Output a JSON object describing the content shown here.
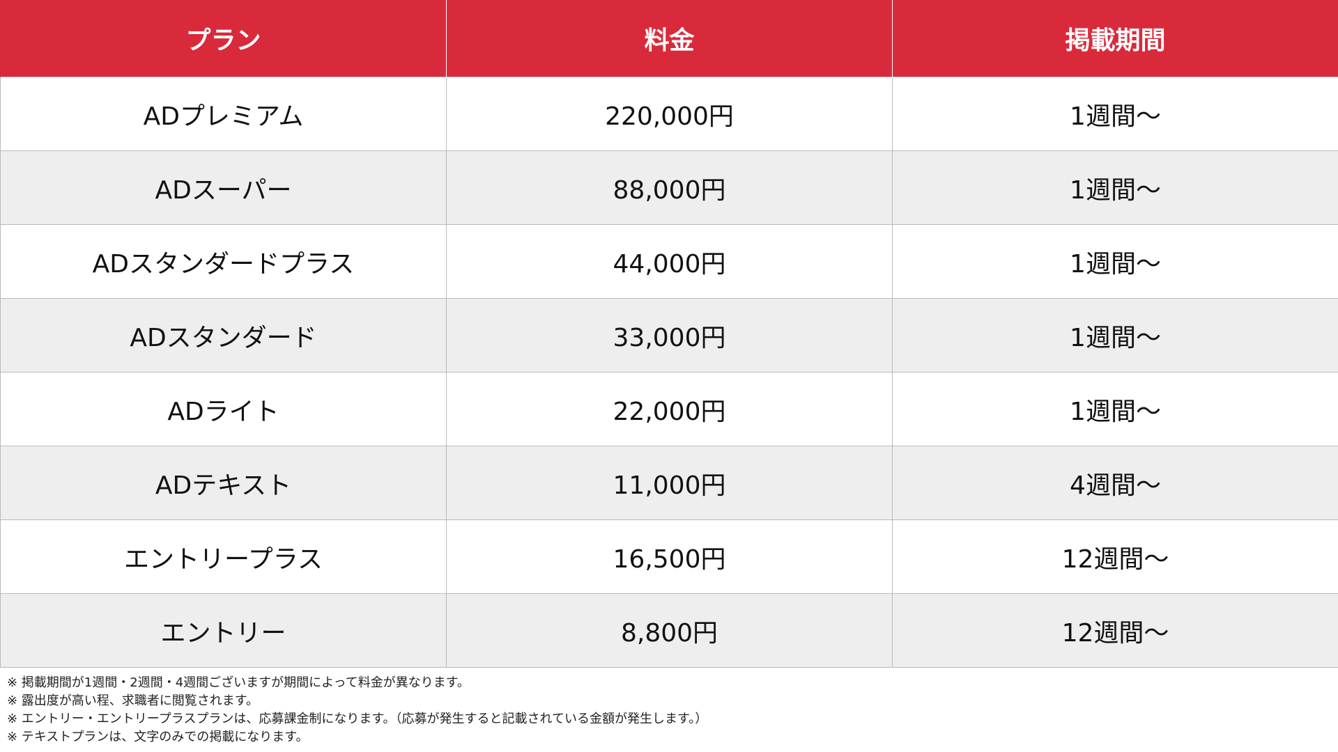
{
  "table": {
    "headers": [
      "プラン",
      "料金",
      "掲載期間"
    ],
    "rows": [
      [
        "ADプレミアム",
        "220,000円",
        "1週間〜"
      ],
      [
        "ADスーパー",
        "88,000円",
        "1週間〜"
      ],
      [
        "ADスタンダードプラス",
        "44,000円",
        "1週間〜"
      ],
      [
        "ADスタンダード",
        "33,000円",
        "1週間〜"
      ],
      [
        "ADライト",
        "22,000円",
        "1週間〜"
      ],
      [
        "ADテキスト",
        "11,000円",
        "4週間〜"
      ],
      [
        "エントリープラス",
        "16,500円",
        "12週間〜"
      ],
      [
        "エントリー",
        "8,800円",
        "12週間〜"
      ]
    ]
  },
  "notes": [
    "※ 掲載期間が1週間・2週間・4週間ございますが期間によって料金が異なります。",
    "※ 露出度が高い程、求職者に閲覧されます。",
    "※ エントリー・エントリープラスプランは、応募課金制になります。（応募が発生すると記載されている金額が発生します。）",
    "※ テキストプランは、文字のみでの掲載になります。"
  ],
  "colors": {
    "header_background": "#d92a3c",
    "header_text": "#ffffff",
    "row_alt_background": "#eeeeee",
    "grid_line": "#b9b9b9"
  }
}
